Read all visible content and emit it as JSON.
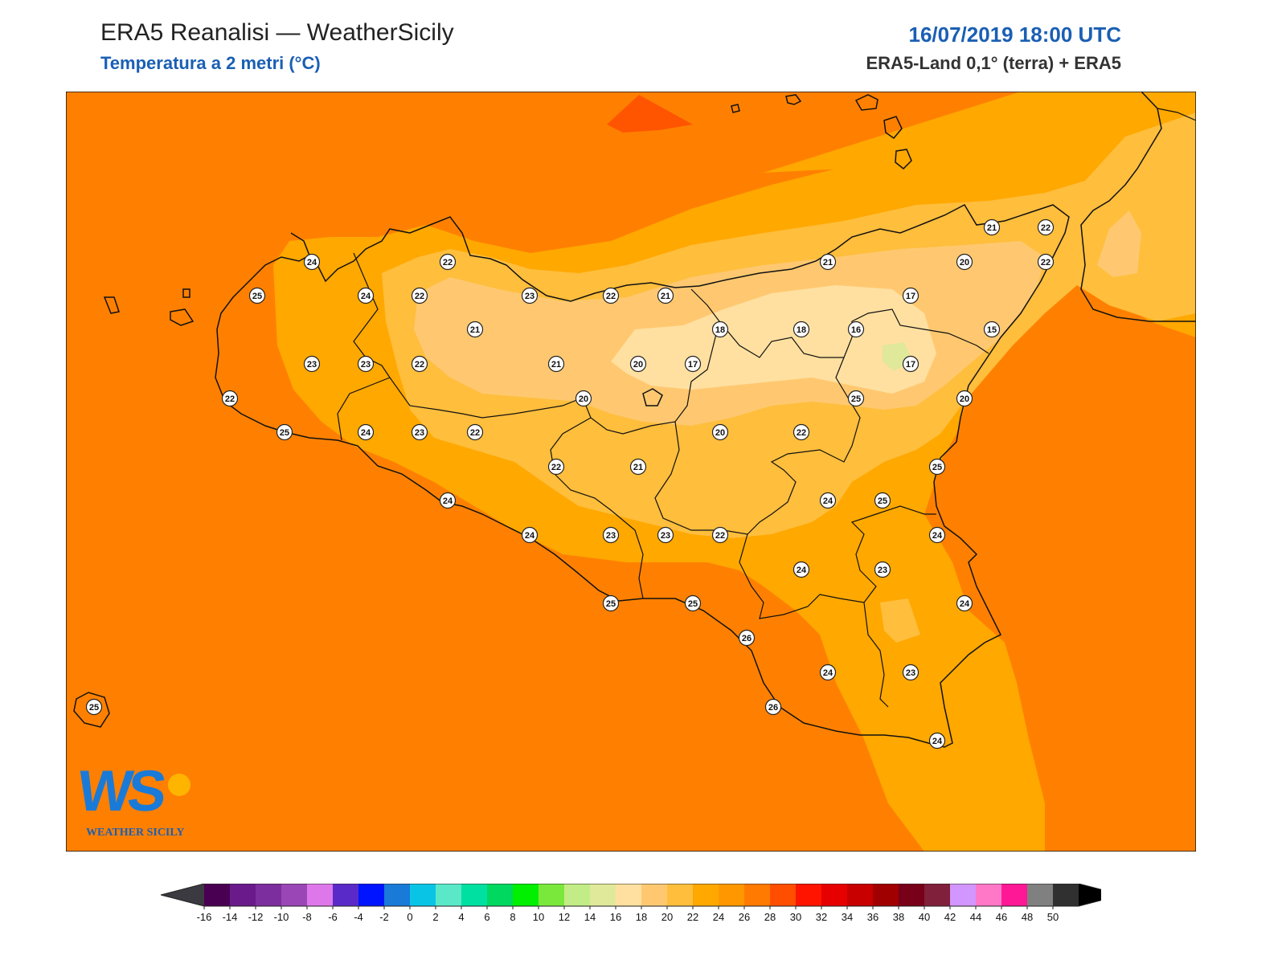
{
  "header": {
    "title": "ERA5 Reanalisi — WeatherSicily",
    "subtitle": "Temperatura a 2 metri (°C)",
    "datetime": "16/07/2019 18:00 UTC",
    "source": "ERA5-Land 0,1° (terra) + ERA5"
  },
  "logo": {
    "monogram": "WS",
    "text": "WEATHER SICILY"
  },
  "colorbar": {
    "ticks": [
      "-16",
      "-14",
      "-12",
      "-10",
      "-8",
      "-6",
      "-4",
      "-2",
      "0",
      "2",
      "4",
      "6",
      "8",
      "10",
      "12",
      "14",
      "16",
      "18",
      "20",
      "22",
      "24",
      "26",
      "28",
      "30",
      "32",
      "34",
      "36",
      "38",
      "40",
      "42",
      "44",
      "46",
      "48",
      "50"
    ],
    "colors": [
      "#4a0052",
      "#6a1a8a",
      "#7d2e9e",
      "#9a46b6",
      "#de78ea",
      "#5a2ac8",
      "#0014ff",
      "#1a7ad8",
      "#0ac4e6",
      "#5ae8c8",
      "#00e0a0",
      "#00d860",
      "#00f000",
      "#7ae83a",
      "#c2ec86",
      "#e0e89a",
      "#ffe0a0",
      "#ffc870",
      "#ffbe3c",
      "#ffa800",
      "#ff9800",
      "#ff7a00",
      "#ff4e00",
      "#ff1400",
      "#e60000",
      "#c80000",
      "#a00000",
      "#780018",
      "#80203a",
      "#d296ff",
      "#ff78c8",
      "#ff1896",
      "#808080",
      "#303030"
    ],
    "min_arrow_color": "#3a3a40",
    "max_arrow_color": "#000000"
  },
  "map": {
    "sea_color": "#ff8000",
    "stations": [
      {
        "v": "24"
      },
      {
        "v": "22"
      },
      {
        "v": "25"
      },
      {
        "v": "24"
      },
      {
        "v": "22"
      },
      {
        "v": "23"
      },
      {
        "v": "22"
      },
      {
        "v": "21"
      },
      {
        "v": "21"
      },
      {
        "v": "18"
      },
      {
        "v": "22"
      },
      {
        "v": "21"
      },
      {
        "v": "20"
      },
      {
        "v": "22"
      },
      {
        "v": "23"
      },
      {
        "v": "23"
      },
      {
        "v": "22"
      },
      {
        "v": "20"
      },
      {
        "v": "17"
      },
      {
        "v": "17"
      },
      {
        "v": "18"
      },
      {
        "v": "16"
      },
      {
        "v": "17"
      },
      {
        "v": "15"
      },
      {
        "v": "22"
      },
      {
        "v": "25"
      },
      {
        "v": "20"
      },
      {
        "v": "20"
      },
      {
        "v": "21"
      },
      {
        "v": "25"
      },
      {
        "v": "24"
      },
      {
        "v": "23"
      },
      {
        "v": "21"
      },
      {
        "v": "20"
      },
      {
        "v": "22"
      },
      {
        "v": "22"
      },
      {
        "v": "21"
      },
      {
        "v": "25"
      },
      {
        "v": "24"
      },
      {
        "v": "22"
      },
      {
        "v": "24"
      },
      {
        "v": "25"
      },
      {
        "v": "24"
      },
      {
        "v": "23"
      },
      {
        "v": "23"
      },
      {
        "v": "22"
      },
      {
        "v": "24"
      },
      {
        "v": "24"
      },
      {
        "v": "23"
      },
      {
        "v": "24"
      },
      {
        "v": "25"
      },
      {
        "v": "25"
      },
      {
        "v": "26"
      },
      {
        "v": "24"
      },
      {
        "v": "23"
      },
      {
        "v": "26"
      },
      {
        "v": "24"
      },
      {
        "v": "25"
      }
    ]
  }
}
